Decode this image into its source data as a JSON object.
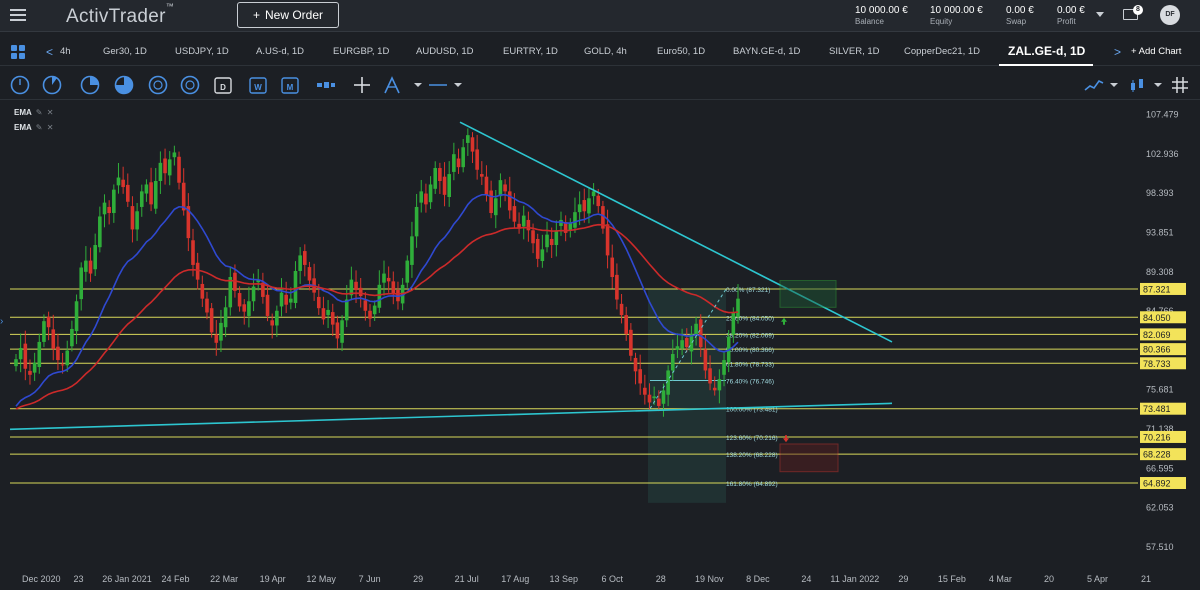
{
  "topbar": {
    "logo": "ActivTrader",
    "logo_mark": "™",
    "new_order_plus": "+",
    "new_order_label": "New Order",
    "metrics": [
      {
        "value": "10 000.00 €",
        "label": "Balance"
      },
      {
        "value": "10 000.00 €",
        "label": "Equity"
      },
      {
        "value": "0.00 €",
        "label": "Swap"
      },
      {
        "value": "0.00 €",
        "label": "Profit"
      }
    ],
    "mail_count": "8",
    "avatar_initials": "DF"
  },
  "tabs": {
    "prev_arrow": "<",
    "next_arrow": ">",
    "items": [
      "4h",
      "Ger30, 1D",
      "USDJPY, 1D",
      "A.US-d, 1D",
      "EURGBP, 1D",
      "AUDUSD, 1D",
      "EURTRY, 1D",
      "GOLD, 4h",
      "Euro50, 1D",
      "BAYN.GE-d, 1D",
      "SILVER, 1D",
      "CopperDec21, 1D",
      "ZAL.GE-d, 1D"
    ],
    "active_index": 12,
    "add_chart": "+ Add Chart"
  },
  "toolbar": {
    "tools": [
      "clock-icon",
      "pie-quarter-icon",
      "pie-half-icon",
      "pie-three-quarter-icon",
      "globe-icon",
      "globe-alt-icon",
      "globe-dark-icon",
      "calendar-d-icon",
      "calendar-w-icon",
      "calendar-m-icon",
      "candle-type-icon",
      "crosshair-icon",
      "drawing-tool-icon",
      "line-style-icon"
    ],
    "right_tools": [
      "line-chart-icon",
      "indicator-icon",
      "grid-hash-icon"
    ]
  },
  "indicators": [
    "EMA",
    "EMA"
  ],
  "colors": {
    "bull": "#2fae3a",
    "bear": "#d8342c",
    "ema_fast": "#2f49d1",
    "ema_slow": "#cc2a2a",
    "trendline": "#2dc6d0",
    "level": "#d9d95a",
    "label_bg": "#f3e35a",
    "accent": "#4a90e2"
  },
  "chart_data": {
    "type": "candlestick",
    "symbol": "ZAL.GE-d, 1D",
    "price_axis": [
      "107.479",
      "102.936",
      "98.393",
      "93.851",
      "89.308",
      "84.766",
      "80.223",
      "75.681",
      "71.138",
      "66.595",
      "62.053",
      "57.510"
    ],
    "ylim": [
      55.3,
      108.7
    ],
    "time_axis": [
      "Dec 2020",
      "23",
      "26 Jan 2021",
      "24 Feb",
      "22 Mar",
      "19 Apr",
      "12 May",
      "7 Jun",
      "29",
      "21 Jul",
      "17 Aug",
      "13 Sep",
      "6 Oct",
      "28",
      "19 Nov",
      "8 Dec",
      "24",
      "11 Jan 2022",
      "29",
      "15 Feb",
      "4 Mar",
      "20",
      "5 Apr",
      "21"
    ],
    "horizontal_levels": [
      {
        "value": 87.321,
        "label": "87.321"
      },
      {
        "value": 84.05,
        "label": "84.050"
      },
      {
        "value": 82.069,
        "label": "82.069"
      },
      {
        "value": 80.366,
        "label": "80.366"
      },
      {
        "value": 78.733,
        "label": "78.733"
      },
      {
        "value": 73.481,
        "label": "73.481"
      },
      {
        "value": 70.216,
        "label": "70.216"
      },
      {
        "value": 68.228,
        "label": "68.228"
      },
      {
        "value": 64.892,
        "label": "64.892"
      }
    ],
    "fibonacci": [
      {
        "value": 87.321,
        "label": "0.00% (87.321)"
      },
      {
        "value": 84.05,
        "label": "23.60% (84.050)"
      },
      {
        "value": 82.069,
        "label": "38.20% (82.069)"
      },
      {
        "value": 80.366,
        "label": "50.00% (80.366)"
      },
      {
        "value": 78.733,
        "label": "61.80% (78.733)"
      },
      {
        "value": 76.746,
        "label": "76.40% (76.746)"
      },
      {
        "value": 73.481,
        "label": "100.00% (73.481)"
      },
      {
        "value": 70.216,
        "label": "123.60% (70.216)"
      },
      {
        "value": 68.228,
        "label": "138.20% (68.228)"
      },
      {
        "value": 64.892,
        "label": "161.80% (64.892)"
      }
    ],
    "closes": [
      79.2,
      80.5,
      78.1,
      77.4,
      78.8,
      81.2,
      83.6,
      82.9,
      80.4,
      79.1,
      78.5,
      80.2,
      82.7,
      85.9,
      89.8,
      90.6,
      89.1,
      92.4,
      95.7,
      97.3,
      96.1,
      98.8,
      100.2,
      99.1,
      97.4,
      94.2,
      96.3,
      98.6,
      99.4,
      97.1,
      99.8,
      101.9,
      100.7,
      102.3,
      103.1,
      99.6,
      96.4,
      93.2,
      90.1,
      88.4,
      86.2,
      84.6,
      82.3,
      81.1,
      83.4,
      85.2,
      88.7,
      87.1,
      85.3,
      84.7,
      85.9,
      87.6,
      88.3,
      86.4,
      84.2,
      83.1,
      84.8,
      86.9,
      85.5,
      86.2,
      89.4,
      91.2,
      90.1,
      88.3,
      86.9,
      85.1,
      83.8,
      84.9,
      83.2,
      81.6,
      83.7,
      86.1,
      88.4,
      87.2,
      86.5,
      84.8,
      83.9,
      85.4,
      87.8,
      89.1,
      88.2,
      86.7,
      85.9,
      87.8,
      90.6,
      93.4,
      96.8,
      98.6,
      97.1,
      99.4,
      101.3,
      99.8,
      98.2,
      100.6,
      102.9,
      101.4,
      103.7,
      105.1,
      103.2,
      101.1,
      100.3,
      98.2,
      96.1,
      97.8,
      99.9,
      98.6,
      96.4,
      95.1,
      94.3,
      95.8,
      94.1,
      92.6,
      90.8,
      91.9,
      93.6,
      92.4,
      94.1,
      95.3,
      93.8,
      94.9,
      96.2,
      97.1,
      96.3,
      97.8,
      98.6,
      96.9,
      94.3,
      91.2,
      88.7,
      86.1,
      84.3,
      82.1,
      79.6,
      77.8,
      76.4,
      75.1,
      74.2,
      74.9,
      73.8,
      75.6,
      77.9,
      79.8,
      80.7,
      81.4,
      80.6,
      82.1,
      83.3,
      80.6,
      77.9,
      76.4,
      75.6,
      76.9,
      79.1,
      81.8,
      84.6,
      86.2
    ]
  }
}
